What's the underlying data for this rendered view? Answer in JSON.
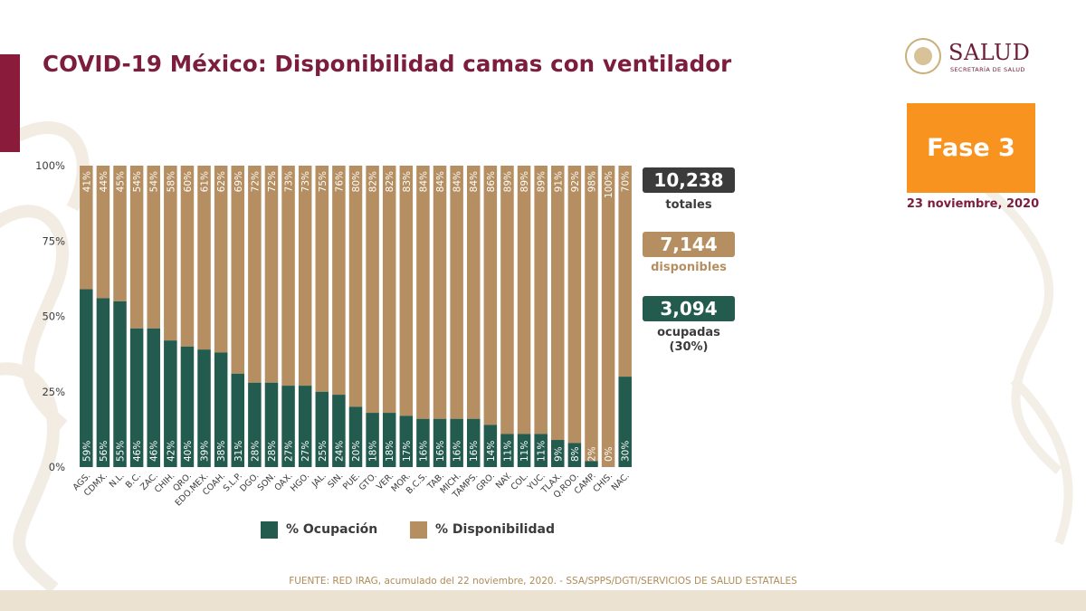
{
  "header": {
    "title": "COVID-19 México: Disponibilidad camas con ventilador",
    "logo_name": "SALUD",
    "logo_sub": "SECRETARÍA DE SALUD"
  },
  "phase": {
    "label": "Fase 3",
    "date": "23 noviembre, 2020"
  },
  "stats": {
    "total_value": "10,238",
    "total_label": "totales",
    "disp_value": "7,144",
    "disp_label": "disponibles",
    "ocup_value": "3,094",
    "ocup_label": "ocupadas",
    "ocup_pct": "(30%)"
  },
  "legend": {
    "ocupacion": "% Ocupación",
    "disponibilidad": "% Disponibilidad"
  },
  "source": "FUENTE: RED IRAG, acumulado del 22 noviembre, 2020. -   SSA/SPPS/DGTI/SERVICIOS DE SALUD ESTATALES",
  "colors": {
    "ocupacion": "#235b4e",
    "disponibilidad": "#b58f61",
    "title": "#7c1d3e",
    "phase": "#f7931e"
  },
  "chart_data": {
    "type": "bar",
    "stacked": true,
    "percent": true,
    "categories": [
      "AGS.",
      "CDMX.",
      "N.L.",
      "B.C.",
      "ZAC.",
      "CHIH.",
      "QRO.",
      "EDO.MEX.",
      "COAH.",
      "S.L.P.",
      "DGO.",
      "SON.",
      "OAX.",
      "HGO.",
      "JAL.",
      "SIN.",
      "PUE.",
      "GTO.",
      "VER.",
      "MOR.",
      "B.C.S.",
      "TAB.",
      "MICH.",
      "TAMPS.",
      "GRO.",
      "NAY.",
      "COL.",
      "YUC.",
      "TLAX.",
      "Q.ROO.",
      "CAMP.",
      "CHIS.",
      "NAC."
    ],
    "series": [
      {
        "name": "% Ocupación",
        "values": [
          59,
          56,
          55,
          46,
          46,
          42,
          40,
          39,
          38,
          31,
          28,
          28,
          27,
          27,
          25,
          24,
          20,
          18,
          18,
          17,
          16,
          16,
          16,
          16,
          14,
          11,
          11,
          11,
          9,
          8,
          2,
          0,
          30
        ]
      },
      {
        "name": "% Disponibilidad",
        "values": [
          41,
          44,
          45,
          54,
          54,
          58,
          60,
          61,
          62,
          69,
          72,
          72,
          73,
          73,
          75,
          76,
          80,
          82,
          82,
          83,
          84,
          84,
          84,
          84,
          86,
          89,
          89,
          89,
          91,
          92,
          98,
          100,
          70
        ]
      }
    ],
    "labels_ocupacion": [
      "59%",
      "56%",
      "55%",
      "46%",
      "46%",
      "42%",
      "40%",
      "39%",
      "38%",
      "31%",
      "28%",
      "28%",
      "27%",
      "27%",
      "25%",
      "24%",
      "20%",
      "18%",
      "18%",
      "17%",
      "16%",
      "16%",
      "16%",
      "16%",
      "14%",
      "11%",
      "11%",
      "11%",
      "9%",
      "8%",
      "2%",
      "0%",
      "30%"
    ],
    "labels_disponibilidad": [
      "41%",
      "44%",
      "45%",
      "54%",
      "54%",
      "58%",
      "60%",
      "61%",
      "62%",
      "69%",
      "72%",
      "72%",
      "73%",
      "73%",
      "75%",
      "76%",
      "80%",
      "82%",
      "82%",
      "83%",
      "84%",
      "84%",
      "84%",
      "84%",
      "86%",
      "89%",
      "89%",
      "89%",
      "91%",
      "92%",
      "98%",
      "100%",
      "70%"
    ],
    "yticks": [
      "100%",
      "75%",
      "50%",
      "25%",
      "0%"
    ],
    "ylim": [
      0,
      100
    ],
    "grid": false,
    "legend_position": "bottom"
  }
}
